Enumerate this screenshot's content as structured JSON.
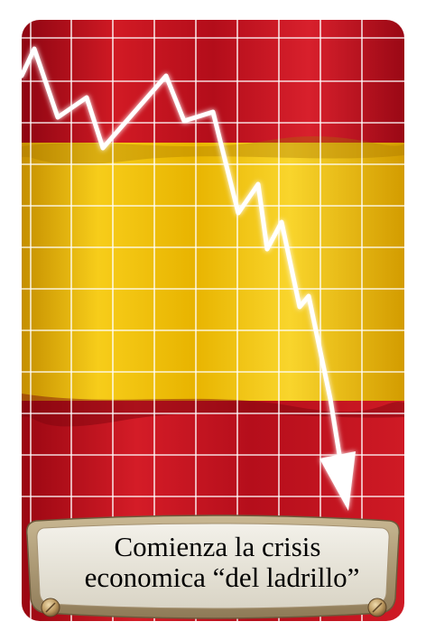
{
  "card": {
    "caption_line1": "Comienza la crisis",
    "caption_line2": "economica “del ladrillo”"
  },
  "colors": {
    "flag_red": "#c8102e",
    "flag_yellow": "#f5c400",
    "grid": "#ffffff",
    "plaque": "#e6e2d6",
    "frame": "#b9a583"
  },
  "icons": {
    "arrow": "down-trend-arrow-icon",
    "rivet_left": "rivet-icon",
    "rivet_right": "rivet-icon"
  }
}
